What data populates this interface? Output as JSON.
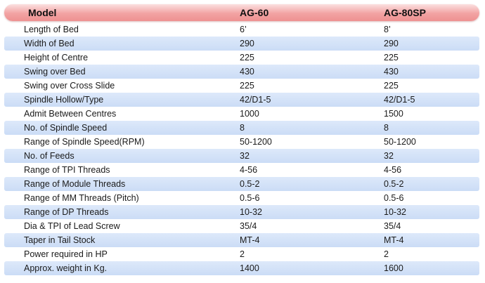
{
  "table": {
    "headers": [
      "Model",
      "AG-60",
      "AG-80SP"
    ],
    "rows": [
      [
        "Length of Bed",
        "6’",
        "8’"
      ],
      [
        "Width of Bed",
        "290",
        "290"
      ],
      [
        "Height of Centre",
        "225",
        "225"
      ],
      [
        "Swing over Bed",
        "430",
        "430"
      ],
      [
        "Swing over Cross Slide",
        "225",
        "225"
      ],
      [
        "Spindle Hollow/Type",
        "42/D1-5",
        "42/D1-5"
      ],
      [
        "Admit Between Centres",
        "1000",
        "1500"
      ],
      [
        "No. of Spindle Speed",
        "8",
        "8"
      ],
      [
        "Range of Spindle Speed(RPM)",
        "50-1200",
        "50-1200"
      ],
      [
        "No. of Feeds",
        "32",
        "32"
      ],
      [
        "Range of TPI Threads",
        "4-56",
        "4-56"
      ],
      [
        "Range of Module Threads",
        "0.5-2",
        "0.5-2"
      ],
      [
        "Range of MM   Threads (Pitch)",
        "0.5-6",
        "0.5-6"
      ],
      [
        "Range of DP   Threads",
        "10-32",
        "10-32"
      ],
      [
        "Dia & TPI of Lead Screw",
        "35/4",
        "35/4"
      ],
      [
        "Taper in Tail Stock",
        "MT-4",
        "MT-4"
      ],
      [
        "Power required in HP",
        "2",
        "2"
      ],
      [
        "Approx. weight in Kg.",
        "1400",
        "1600"
      ]
    ]
  }
}
